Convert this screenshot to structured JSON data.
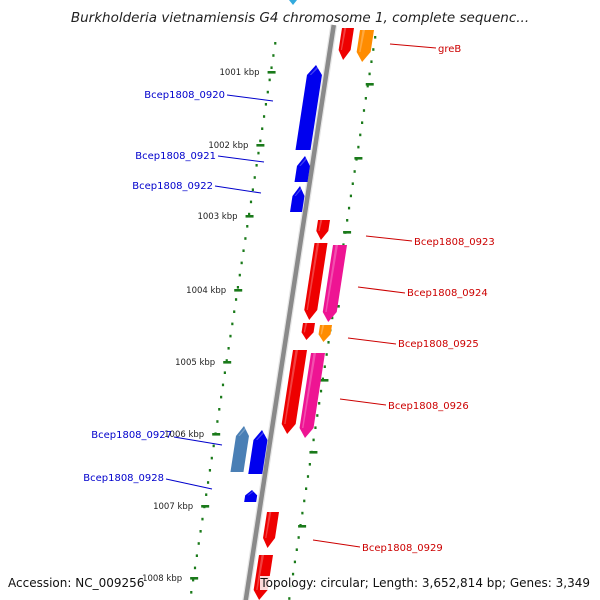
{
  "title": "Burkholderia vietnamiensis G4 chromosome 1, complete sequenc...",
  "footer": {
    "accession": "Accession: NC_009256",
    "topology": "Topology: circular; Length: 3,652,814 bp; Genes: 3,349"
  },
  "colors": {
    "backbone": "#8a8a8a",
    "tick": "#1a7a1a",
    "label_reverse": "#0000cc",
    "label_forward": "#cc0000",
    "gene_red": "#ee0000",
    "gene_blue": "#0000ee",
    "gene_steelblue": "#4a7fb5",
    "gene_orange": "#ff8c00",
    "gene_pink": "#ee1493"
  },
  "kbp_ticks": [
    "1001 kbp",
    "1002 kbp",
    "1003 kbp",
    "1004 kbp",
    "1005 kbp",
    "1006 kbp",
    "1007 kbp",
    "1008 kbp"
  ],
  "genes": [
    {
      "label": "greB",
      "strand": "+",
      "color": "gene_orange"
    },
    {
      "label": "Bcep1808_0920",
      "strand": "-",
      "color": "gene_blue"
    },
    {
      "label": "Bcep1808_0921",
      "strand": "-",
      "color": "gene_blue"
    },
    {
      "label": "Bcep1808_0922",
      "strand": "-",
      "color": "gene_blue"
    },
    {
      "label": "Bcep1808_0923",
      "strand": "+",
      "color": "gene_red"
    },
    {
      "label": "Bcep1808_0924",
      "strand": "+",
      "color": "gene_pink"
    },
    {
      "label": "Bcep1808_0925",
      "strand": "+",
      "color": "gene_orange"
    },
    {
      "label": "Bcep1808_0926",
      "strand": "+",
      "color": "gene_pink"
    },
    {
      "label": "Bcep1808_0927",
      "strand": "-",
      "color": "gene_blue"
    },
    {
      "label": "Bcep1808_0928",
      "strand": "-",
      "color": "gene_blue"
    },
    {
      "label": "Bcep1808_0929",
      "strand": "+",
      "color": "gene_red"
    }
  ]
}
